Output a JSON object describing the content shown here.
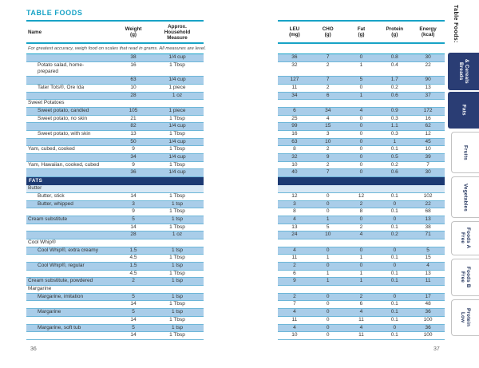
{
  "colors": {
    "teal_accent": "#18a3c6",
    "navy_section": "#1d3a73",
    "tab_navy": "#2a3d74",
    "row_blue": "#a9cde9",
    "row_pale_blue": "#d8e8f5",
    "row_line": "#6db6d8"
  },
  "page": {
    "title": "TABLE FOODS",
    "note": "For greatest accuracy, weigh food on scales that read in grams. All measures are level.",
    "left_page_number": "36",
    "right_page_number": "37"
  },
  "columns": {
    "left": [
      "Name",
      "Weight\n(g)",
      "Approx.\nHousehold\nMeasure"
    ],
    "right": [
      "LEU\n(mg)",
      "CHO\n(g)",
      "Fat\n(g)",
      "Protein\n(g)",
      "Energy\n(kcal)"
    ]
  },
  "rows": [
    {
      "type": "item",
      "name": "",
      "indent": false,
      "weight": "38",
      "measure": "1/4 cup",
      "leu": "36",
      "cho": "7",
      "fat": "0",
      "protein": "0.8",
      "energy": "30",
      "shade": "b"
    },
    {
      "type": "item",
      "name": "Potato salad, home-\nprepared",
      "indent": true,
      "tall": true,
      "weight": "16",
      "measure": "1 Tbsp",
      "leu": "32",
      "cho": "2",
      "fat": "1",
      "protein": "0.4",
      "energy": "22",
      "shade": "w"
    },
    {
      "type": "item",
      "name": "",
      "indent": false,
      "weight": "63",
      "measure": "1/4 cup",
      "leu": "127",
      "cho": "7",
      "fat": "5",
      "protein": "1.7",
      "energy": "90",
      "shade": "b"
    },
    {
      "type": "item",
      "name": "Tater Tots®, Ore Ida",
      "indent": true,
      "weight": "10",
      "measure": "1 piece",
      "leu": "11",
      "cho": "2",
      "fat": "0",
      "protein": "0.2",
      "energy": "13",
      "shade": "w"
    },
    {
      "type": "item",
      "name": "",
      "indent": false,
      "weight": "28",
      "measure": "1 oz",
      "leu": "34",
      "cho": "6",
      "fat": "1",
      "protein": "0.6",
      "energy": "37",
      "shade": "b"
    },
    {
      "type": "subheader",
      "name": "Sweet Potatoes",
      "indent": false,
      "weight": "",
      "measure": "",
      "leu": "",
      "cho": "",
      "fat": "",
      "protein": "",
      "energy": "",
      "shade": "w"
    },
    {
      "type": "item",
      "name": "Sweet potato, candied",
      "indent": true,
      "weight": "105",
      "measure": "1 piece",
      "leu": "6",
      "cho": "34",
      "fat": "4",
      "protein": "0.9",
      "energy": "172",
      "shade": "b"
    },
    {
      "type": "item",
      "name": "Sweet potato, no skin",
      "indent": true,
      "weight": "21",
      "measure": "1 Tbsp",
      "leu": "25",
      "cho": "4",
      "fat": "0",
      "protein": "0.3",
      "energy": "16",
      "shade": "w"
    },
    {
      "type": "item",
      "name": "",
      "indent": false,
      "weight": "82",
      "measure": "1/4 cup",
      "leu": "99",
      "cho": "15",
      "fat": "0",
      "protein": "1.1",
      "energy": "62",
      "shade": "b"
    },
    {
      "type": "item",
      "name": "Sweet potato, with skin",
      "indent": true,
      "weight": "13",
      "measure": "1 Tbsp",
      "leu": "16",
      "cho": "3",
      "fat": "0",
      "protein": "0.3",
      "energy": "12",
      "shade": "w"
    },
    {
      "type": "item",
      "name": "",
      "indent": false,
      "weight": "50",
      "measure": "1/4 cup",
      "leu": "63",
      "cho": "10",
      "fat": "0",
      "protein": "1",
      "energy": "45",
      "shade": "b"
    },
    {
      "type": "item",
      "name": "Yam, cubed, cooked",
      "indent": false,
      "weight": "9",
      "measure": "1 Tbsp",
      "leu": "8",
      "cho": "2",
      "fat": "0",
      "protein": "0.1",
      "energy": "10",
      "shade": "w"
    },
    {
      "type": "item",
      "name": "",
      "indent": false,
      "weight": "34",
      "measure": "1/4 cup",
      "leu": "32",
      "cho": "9",
      "fat": "0",
      "protein": "0.5",
      "energy": "39",
      "shade": "b"
    },
    {
      "type": "item",
      "name": "Yam, Hawaiian, cooked, cubed",
      "indent": false,
      "weight": "9",
      "measure": "1 Tbsp",
      "leu": "10",
      "cho": "2",
      "fat": "0",
      "protein": "0.2",
      "energy": "7",
      "shade": "w"
    },
    {
      "type": "item",
      "name": "",
      "indent": false,
      "weight": "36",
      "measure": "1/4 cup",
      "leu": "40",
      "cho": "7",
      "fat": "0",
      "protein": "0.6",
      "energy": "30",
      "shade": "b"
    },
    {
      "type": "section",
      "label": "FATS"
    },
    {
      "type": "subheader",
      "name": "Butter",
      "indent": false,
      "weight": "",
      "measure": "",
      "leu": "",
      "cho": "",
      "fat": "",
      "protein": "",
      "energy": "",
      "shade": "p"
    },
    {
      "type": "item",
      "name": "Butter, stick",
      "indent": true,
      "weight": "14",
      "measure": "1 Tbsp",
      "leu": "12",
      "cho": "0",
      "fat": "12",
      "protein": "0.1",
      "energy": "102",
      "shade": "w"
    },
    {
      "type": "item",
      "name": "Butter, whipped",
      "indent": true,
      "weight": "3",
      "measure": "1 tsp",
      "leu": "3",
      "cho": "0",
      "fat": "2",
      "protein": "0",
      "energy": "22",
      "shade": "b"
    },
    {
      "type": "item",
      "name": "",
      "indent": false,
      "weight": "9",
      "measure": "1 Tbsp",
      "leu": "8",
      "cho": "0",
      "fat": "8",
      "protein": "0.1",
      "energy": "68",
      "shade": "w"
    },
    {
      "type": "item",
      "name": "Cream substitute",
      "indent": false,
      "weight": "5",
      "measure": "1 tsp",
      "leu": "4",
      "cho": "1",
      "fat": "0",
      "protein": "0",
      "energy": "13",
      "shade": "b"
    },
    {
      "type": "item",
      "name": "",
      "indent": false,
      "weight": "14",
      "measure": "1 Tbsp",
      "leu": "13",
      "cho": "5",
      "fat": "2",
      "protein": "0.1",
      "energy": "38",
      "shade": "w"
    },
    {
      "type": "item",
      "name": "",
      "indent": false,
      "weight": "28",
      "measure": "1 oz",
      "leu": "24",
      "cho": "10",
      "fat": "4",
      "protein": "0.2",
      "energy": "71",
      "shade": "b"
    },
    {
      "type": "subheader",
      "name": "Cool Whip®",
      "indent": false,
      "weight": "",
      "measure": "",
      "leu": "",
      "cho": "",
      "fat": "",
      "protein": "",
      "energy": "",
      "shade": "w"
    },
    {
      "type": "item",
      "name": "Cool Whip®, extra creamy",
      "indent": true,
      "weight": "1.5",
      "measure": "1 tsp",
      "leu": "4",
      "cho": "0",
      "fat": "0",
      "protein": "0",
      "energy": "5",
      "shade": "b"
    },
    {
      "type": "item",
      "name": "",
      "indent": false,
      "weight": "4.5",
      "measure": "1 Tbsp",
      "leu": "11",
      "cho": "1",
      "fat": "1",
      "protein": "0.1",
      "energy": "15",
      "shade": "w"
    },
    {
      "type": "item",
      "name": "Cool Whip®, regular",
      "indent": true,
      "weight": "1.5",
      "measure": "1 tsp",
      "leu": "2",
      "cho": "0",
      "fat": "0",
      "protein": "0",
      "energy": "4",
      "shade": "b"
    },
    {
      "type": "item",
      "name": "",
      "indent": false,
      "weight": "4.5",
      "measure": "1 Tbsp",
      "leu": "6",
      "cho": "1",
      "fat": "1",
      "protein": "0.1",
      "energy": "13",
      "shade": "w"
    },
    {
      "type": "item",
      "name": "Cream substitute, powdered",
      "indent": false,
      "weight": "2",
      "measure": "1 tsp",
      "leu": "9",
      "cho": "1",
      "fat": "1",
      "protein": "0.1",
      "energy": "11",
      "shade": "b"
    },
    {
      "type": "subheader",
      "name": "Margarine",
      "indent": false,
      "weight": "",
      "measure": "",
      "leu": "",
      "cho": "",
      "fat": "",
      "protein": "",
      "energy": "",
      "shade": "w"
    },
    {
      "type": "item",
      "name": "Margarine, imitation",
      "indent": true,
      "weight": "5",
      "measure": "1 tsp",
      "leu": "2",
      "cho": "0",
      "fat": "2",
      "protein": "0",
      "energy": "17",
      "shade": "b"
    },
    {
      "type": "item",
      "name": "",
      "indent": false,
      "weight": "14",
      "measure": "1 Tbsp",
      "leu": "7",
      "cho": "0",
      "fat": "6",
      "protein": "0.1",
      "energy": "48",
      "shade": "w"
    },
    {
      "type": "item",
      "name": "Margarine",
      "indent": true,
      "weight": "5",
      "measure": "1 tsp",
      "leu": "4",
      "cho": "0",
      "fat": "4",
      "protein": "0.1",
      "energy": "36",
      "shade": "b"
    },
    {
      "type": "item",
      "name": "",
      "indent": false,
      "weight": "14",
      "measure": "1 Tbsp",
      "leu": "11",
      "cho": "0",
      "fat": "11",
      "protein": "0.1",
      "energy": "100",
      "shade": "w"
    },
    {
      "type": "item",
      "name": "Margarine, soft tub",
      "indent": true,
      "weight": "5",
      "measure": "1 tsp",
      "leu": "4",
      "cho": "0",
      "fat": "4",
      "protein": "0",
      "energy": "36",
      "shade": "b"
    },
    {
      "type": "item",
      "name": "",
      "indent": false,
      "weight": "14",
      "measure": "1 Tbsp",
      "leu": "10",
      "cho": "0",
      "fat": "11",
      "protein": "0.1",
      "energy": "100",
      "shade": "w"
    }
  ],
  "tabs": {
    "header": "Table Foods:",
    "items": [
      {
        "label": "Breads\n& Cereals",
        "active": true
      },
      {
        "label": "Fats",
        "active": true
      },
      {
        "label": "Fruits",
        "active": false
      },
      {
        "label": "Vegetables",
        "active": false
      },
      {
        "label": "Free\nFoods A",
        "active": false
      },
      {
        "label": "Free\nFoods B",
        "active": false
      },
      {
        "label": "Low\nProtein",
        "active": false
      }
    ]
  }
}
